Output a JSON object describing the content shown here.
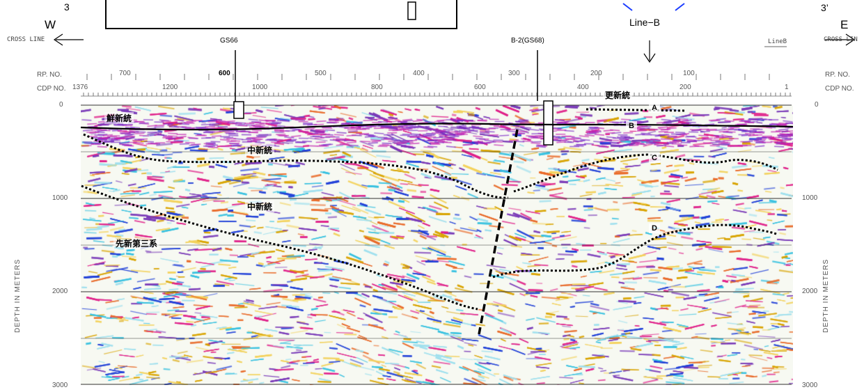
{
  "header": {
    "corner_left": "3",
    "corner_right": "3’",
    "dir_west": "W",
    "dir_east": "E",
    "cross_line_left": "CROSS LINE",
    "cross_line_right": "CROSS LIN",
    "line_b_label": "Line−B",
    "line_b_small": "LineB"
  },
  "wells": {
    "gs66": "GS66",
    "b2": "B-2(GS68)"
  },
  "axes": {
    "rp_label": "RP. NO.",
    "cdp_label": "CDP NO.",
    "rp_ticks": [
      "700",
      "600",
      "500",
      "400",
      "300",
      "200",
      "100"
    ],
    "cdp_ticks": [
      "1376",
      "1200",
      "1000",
      "800",
      "600",
      "400",
      "200",
      "1"
    ],
    "depth_ticks": [
      "0",
      "1000",
      "2000",
      "3000"
    ],
    "depth_label": "DEPTH IN METERS"
  },
  "formations": {
    "sarashin": "更新統",
    "senshin": "鮮新統",
    "chushin1": "中新統",
    "chushin2": "中新統",
    "senshindaisankei": "先新第三系"
  },
  "horizons": [
    "A",
    "B",
    "C",
    "D"
  ]
}
